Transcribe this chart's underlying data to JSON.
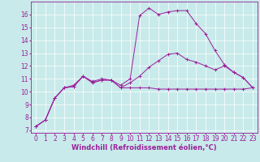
{
  "background_color": "#c8eaea",
  "grid_color": "#ffffff",
  "line_color": "#9b1f9b",
  "marker": "+",
  "xlabel": "Windchill (Refroidissement éolien,°C)",
  "xlabel_fontsize": 6,
  "tick_fontsize": 5.5,
  "xlim": [
    -0.5,
    23.5
  ],
  "ylim": [
    6.8,
    17.0
  ],
  "yticks": [
    7,
    8,
    9,
    10,
    11,
    12,
    13,
    14,
    15,
    16
  ],
  "xticks": [
    0,
    1,
    2,
    3,
    4,
    5,
    6,
    7,
    8,
    9,
    10,
    11,
    12,
    13,
    14,
    15,
    16,
    17,
    18,
    19,
    20,
    21,
    22,
    23
  ],
  "series": [
    {
      "x": [
        0,
        1,
        2,
        3,
        4,
        5,
        6,
        7,
        8,
        9,
        10,
        11,
        12,
        13,
        14,
        15,
        16,
        17,
        18,
        19,
        20,
        21,
        22,
        23
      ],
      "y": [
        7.3,
        7.8,
        9.5,
        10.3,
        10.4,
        11.2,
        10.7,
        10.9,
        10.9,
        10.3,
        10.3,
        10.3,
        10.3,
        10.2,
        10.2,
        10.2,
        10.2,
        10.2,
        10.2,
        10.2,
        10.2,
        10.2,
        10.2,
        10.3
      ]
    },
    {
      "x": [
        0,
        1,
        2,
        3,
        4,
        5,
        6,
        7,
        8,
        9,
        10,
        11,
        12,
        13,
        14,
        15,
        16,
        17,
        18,
        19,
        20,
        21,
        22,
        23
      ],
      "y": [
        7.3,
        7.8,
        9.5,
        10.3,
        10.4,
        11.2,
        10.7,
        10.9,
        10.9,
        10.3,
        10.7,
        11.2,
        11.9,
        12.4,
        12.9,
        13.0,
        12.5,
        12.3,
        12.0,
        11.7,
        12.0,
        11.5,
        11.1,
        10.3
      ]
    },
    {
      "x": [
        0,
        1,
        2,
        3,
        4,
        5,
        6,
        7,
        8,
        9,
        10,
        11,
        12,
        13,
        14,
        15,
        16,
        17,
        18,
        19,
        20,
        21,
        22,
        23
      ],
      "y": [
        7.3,
        7.8,
        9.5,
        10.3,
        10.5,
        11.2,
        10.8,
        11.0,
        10.9,
        10.5,
        11.0,
        15.9,
        16.5,
        16.0,
        16.2,
        16.3,
        16.3,
        15.3,
        14.5,
        13.2,
        12.1,
        11.5,
        11.1,
        10.3
      ]
    }
  ]
}
